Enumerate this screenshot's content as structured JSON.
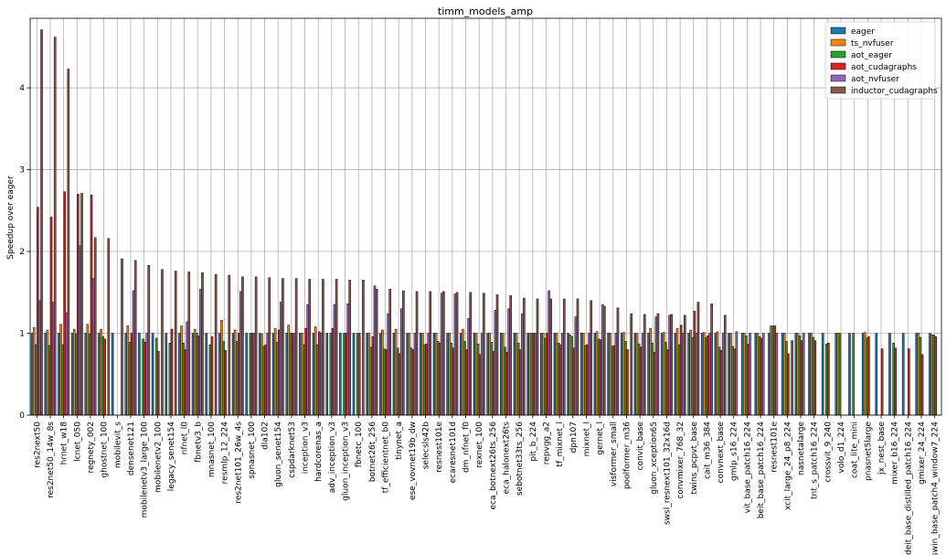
{
  "chart_data": {
    "type": "bar",
    "title": "timm_models_amp",
    "ylabel": "Speedup over eager",
    "xlabel": "",
    "ylim": [
      0,
      4.85
    ],
    "yticks": [
      0,
      1,
      2,
      3,
      4
    ],
    "grid": true,
    "legend_position": "top-right",
    "colors": [
      "#1f77b4",
      "#ff7f0e",
      "#2ca02c",
      "#d62728",
      "#9467bd",
      "#8c564b"
    ],
    "categories": [
      "res2next50",
      "res2net50_14w_8s",
      "hrnet_w18",
      "lcnet_050",
      "regnety_002",
      "ghostnet_100",
      "mobilevit_s",
      "densenet121",
      "mobilenetv3_large_100",
      "mobilenetv2_100",
      "legacy_senet154",
      "nfnet_l0",
      "fbnetv3_b",
      "mnasnet_100",
      "resmlp_12_224",
      "res2net101_26w_4s",
      "spnasnet_100",
      "dla102",
      "gluon_senet154",
      "cspdarknet53",
      "inception_v3",
      "hardcorenas_a",
      "adv_inception_v3",
      "gluon_inception_v3",
      "fbnetc_100",
      "botnet26t_256",
      "tf_efficientnet_b0",
      "tinynet_a",
      "ese_vovnet19b_dw",
      "selecsls42b",
      "resnest101e",
      "ecaresnet101d",
      "dm_nfnet_f0",
      "rexnet_100",
      "eca_botnext26ts_256",
      "eca_halonext26ts",
      "sebotnet33ts_256",
      "pit_b_224",
      "repvgg_a2",
      "tf_mixnet_l",
      "dpn107",
      "mixnet_l",
      "gernet_l",
      "visformer_small",
      "poolformer_m36",
      "convit_base",
      "gluon_xception65",
      "swsl_resnext101_32x16d",
      "convmixer_768_32",
      "twins_pcpvt_base",
      "cait_m36_384",
      "convnext_base",
      "gmlp_s16_224",
      "vit_base_patch16_224",
      "beit_base_patch16_224",
      "resnest101e",
      "xcit_large_24_p8_224",
      "nasnetalarge",
      "tnt_s_patch16_224",
      "crossvit_9_240",
      "volo_d1_224",
      "coat_lite_mini",
      "pnasnet5large",
      "jx_nest_base",
      "mixer_b16_224",
      "deit_base_distilled_patch16_224",
      "gmixer_24_224",
      "swin_base_patch4_window7_224"
    ],
    "series": [
      {
        "name": "eager",
        "values": [
          1.0,
          1.0,
          1.0,
          1.0,
          1.0,
          1.0,
          1.0,
          1.0,
          1.0,
          1.0,
          1.0,
          1.0,
          1.0,
          1.0,
          1.0,
          1.0,
          1.0,
          1.0,
          1.0,
          1.0,
          1.0,
          1.0,
          1.0,
          1.0,
          1.0,
          1.0,
          1.0,
          1.0,
          1.0,
          1.0,
          1.0,
          1.0,
          1.0,
          1.0,
          1.0,
          1.0,
          1.0,
          1.0,
          1.0,
          1.0,
          1.0,
          1.0,
          1.0,
          1.0,
          1.0,
          1.0,
          1.0,
          1.0,
          1.0,
          1.0,
          1.0,
          1.0,
          1.0,
          1.0,
          1.0,
          1.0,
          1.0,
          1.0,
          1.0,
          1.0,
          1.0,
          1.0,
          1.0,
          1.0,
          1.0,
          1.0,
          1.0,
          1.0
        ]
      },
      {
        "name": "ts_nvfuser",
        "values": [
          1.07,
          1.04,
          1.11,
          1.05,
          1.11,
          1.05,
          0.0,
          1.09,
          0.0,
          0.0,
          0.0,
          1.09,
          1.05,
          0.0,
          1.16,
          1.04,
          0.0,
          0.99,
          1.06,
          1.1,
          1.0,
          1.08,
          0.0,
          0.0,
          0.0,
          1.0,
          1.04,
          1.05,
          1.0,
          1.0,
          1.0,
          1.0,
          1.05,
          1.0,
          1.0,
          1.0,
          1.0,
          1.0,
          1.0,
          1.0,
          0.98,
          1.0,
          1.02,
          1.0,
          1.01,
          1.0,
          1.06,
          1.01,
          1.06,
          1.04,
          1.01,
          1.02,
          1.0,
          1.0,
          1.0,
          1.09,
          1.0,
          1.0,
          1.0,
          0.0,
          1.0,
          0.0,
          1.01,
          0.0,
          0.0,
          0.0,
          1.0,
          0.98
        ]
      },
      {
        "name": "aot_eager",
        "values": [
          0.86,
          0.85,
          0.86,
          0.99,
          0.99,
          0.96,
          0.0,
          0.89,
          0.93,
          0.94,
          0.88,
          0.88,
          1.0,
          0.86,
          0.9,
          0.9,
          1.0,
          0.84,
          0.89,
          1.0,
          0.86,
          0.86,
          1.0,
          1.0,
          1.0,
          0.83,
          0.81,
          0.82,
          0.82,
          0.86,
          0.9,
          0.88,
          0.9,
          0.87,
          0.89,
          0.83,
          0.88,
          1.0,
          0.94,
          0.88,
          0.96,
          0.85,
          0.93,
          0.84,
          0.9,
          0.87,
          0.88,
          0.89,
          0.86,
          0.95,
          0.95,
          0.83,
          0.84,
          0.97,
          0.96,
          1.09,
          0.9,
          0.97,
          0.95,
          0.87,
          1.0,
          1.0,
          0.94,
          0.0,
          0.88,
          0.0,
          0.95,
          0.98
        ]
      },
      {
        "name": "aot_cudagraphs",
        "values": [
          2.54,
          2.42,
          2.73,
          2.7,
          2.69,
          0.93,
          0.0,
          1.0,
          0.89,
          0.78,
          1.05,
          0.8,
          0.97,
          0.96,
          0.79,
          1.0,
          1.0,
          0.86,
          1.04,
          1.0,
          1.06,
          1.02,
          1.06,
          1.0,
          1.0,
          0.96,
          0.8,
          0.75,
          0.8,
          0.87,
          0.88,
          0.82,
          0.8,
          0.74,
          0.78,
          0.77,
          0.8,
          1.0,
          1.0,
          0.86,
          0.82,
          0.86,
          0.92,
          0.85,
          0.8,
          0.83,
          0.77,
          0.8,
          1.1,
          1.27,
          0.97,
          0.79,
          0.81,
          0.87,
          0.94,
          1.09,
          0.75,
          0.91,
          0.91,
          0.88,
          0.0,
          0.0,
          0.96,
          0.81,
          0.82,
          0.81,
          0.74,
          0.96
        ]
      },
      {
        "name": "aot_nvfuser",
        "values": [
          1.4,
          1.38,
          1.25,
          2.07,
          1.67,
          0.0,
          0.0,
          1.52,
          1.0,
          0.0,
          0.0,
          1.14,
          1.54,
          0.0,
          0.0,
          1.51,
          1.0,
          1.0,
          1.38,
          1.0,
          1.35,
          1.0,
          1.35,
          1.36,
          0.0,
          1.58,
          1.24,
          1.3,
          1.0,
          1.0,
          1.49,
          1.48,
          1.18,
          1.0,
          1.28,
          1.3,
          1.24,
          1.0,
          1.52,
          1.0,
          1.2,
          1.0,
          1.35,
          1.0,
          0.0,
          1.0,
          1.2,
          1.22,
          1.0,
          1.0,
          1.0,
          1.0,
          1.02,
          1.0,
          1.0,
          1.0,
          0.0,
          1.0,
          0.0,
          0.0,
          0.0,
          0.0,
          0.0,
          0.0,
          0.0,
          0.0,
          0.0,
          0.0
        ]
      },
      {
        "name": "inductor_cudagraphs",
        "values": [
          4.71,
          4.62,
          4.23,
          2.71,
          2.17,
          2.16,
          1.91,
          1.89,
          1.83,
          1.78,
          1.76,
          1.75,
          1.74,
          1.72,
          1.71,
          1.69,
          1.69,
          1.68,
          1.67,
          1.67,
          1.66,
          1.66,
          1.66,
          1.65,
          1.65,
          1.54,
          1.54,
          1.52,
          1.51,
          1.51,
          1.51,
          1.5,
          1.5,
          1.49,
          1.47,
          1.46,
          1.43,
          1.42,
          1.42,
          1.42,
          1.42,
          1.4,
          1.33,
          1.31,
          1.24,
          1.23,
          1.24,
          1.23,
          1.22,
          1.38,
          1.36,
          1.22,
          0.0,
          0.0,
          0.0,
          0.0,
          0.91,
          0.0,
          0.0,
          0.0,
          0.0,
          0.0,
          0.0,
          0.0,
          0.0,
          0.0,
          0.0,
          0.0
        ]
      }
    ]
  }
}
